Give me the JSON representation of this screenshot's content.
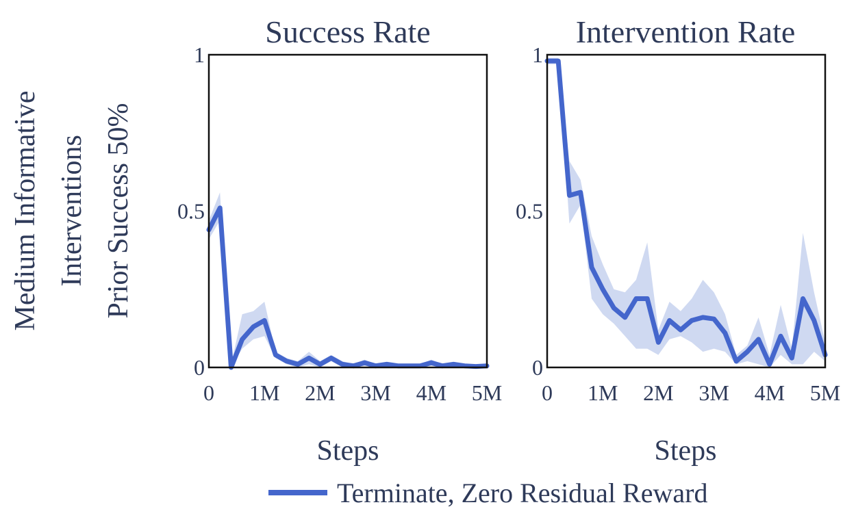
{
  "row_label": [
    "Medium Informative",
    "Interventions",
    "Prior Success 50%"
  ],
  "legend": {
    "label": "Terminate, Zero Residual Reward",
    "color": "#4466cc"
  },
  "colors": {
    "line": "#4466cc",
    "band": "#c7d2ee",
    "text": "#2e3a59",
    "frame": "#111111"
  },
  "chart_data": [
    {
      "type": "line",
      "title": "Success Rate",
      "xlabel": "Steps",
      "ylabel": "",
      "xlim": [
        0,
        5000000
      ],
      "ylim": [
        0,
        1
      ],
      "xticks": [
        0,
        1000000,
        2000000,
        3000000,
        4000000,
        5000000
      ],
      "xtick_labels": [
        "0",
        "1M",
        "2M",
        "3M",
        "4M",
        "5M"
      ],
      "yticks": [
        0,
        0.5,
        1
      ],
      "ytick_labels": [
        "0",
        "0.5",
        "1"
      ],
      "series": [
        {
          "name": "Terminate, Zero Residual Reward",
          "x": [
            0,
            200000,
            400000,
            600000,
            800000,
            1000000,
            1200000,
            1400000,
            1600000,
            1800000,
            2000000,
            2200000,
            2400000,
            2600000,
            2800000,
            3000000,
            3200000,
            3400000,
            3600000,
            3800000,
            4000000,
            4200000,
            4400000,
            4600000,
            4800000,
            5000000
          ],
          "y": [
            0.44,
            0.51,
            0.0,
            0.09,
            0.13,
            0.15,
            0.04,
            0.02,
            0.01,
            0.03,
            0.01,
            0.03,
            0.01,
            0.005,
            0.015,
            0.005,
            0.01,
            0.005,
            0.005,
            0.005,
            0.015,
            0.005,
            0.01,
            0.005,
            0.003,
            0.005
          ],
          "lower": [
            0.41,
            0.47,
            0.0,
            0.06,
            0.09,
            0.1,
            0.03,
            0.01,
            0.0,
            0.01,
            0.0,
            0.02,
            0.0,
            0.0,
            0.005,
            0.0,
            0.005,
            0.0,
            0.0,
            0.0,
            0.005,
            0.0,
            0.005,
            0.0,
            0.0,
            0.0
          ],
          "upper": [
            0.47,
            0.56,
            0.01,
            0.17,
            0.18,
            0.21,
            0.05,
            0.03,
            0.02,
            0.05,
            0.02,
            0.04,
            0.02,
            0.01,
            0.025,
            0.01,
            0.015,
            0.01,
            0.01,
            0.01,
            0.025,
            0.01,
            0.015,
            0.01,
            0.006,
            0.01
          ]
        }
      ]
    },
    {
      "type": "line",
      "title": "Intervention Rate",
      "xlabel": "Steps",
      "ylabel": "",
      "xlim": [
        0,
        5000000
      ],
      "ylim": [
        0,
        1
      ],
      "xticks": [
        0,
        1000000,
        2000000,
        3000000,
        4000000,
        5000000
      ],
      "xtick_labels": [
        "0",
        "1M",
        "2M",
        "3M",
        "4M",
        "5M"
      ],
      "yticks": [
        0,
        0.5,
        1
      ],
      "ytick_labels": [
        "0",
        "0.5",
        "1"
      ],
      "series": [
        {
          "name": "Terminate, Zero Residual Reward",
          "x": [
            0,
            200000,
            400000,
            600000,
            800000,
            1000000,
            1200000,
            1400000,
            1600000,
            1800000,
            2000000,
            2200000,
            2400000,
            2600000,
            2800000,
            3000000,
            3200000,
            3400000,
            3600000,
            3800000,
            4000000,
            4200000,
            4400000,
            4600000,
            4800000,
            5000000
          ],
          "y": [
            0.98,
            0.98,
            0.55,
            0.56,
            0.32,
            0.25,
            0.19,
            0.16,
            0.22,
            0.22,
            0.08,
            0.15,
            0.12,
            0.15,
            0.16,
            0.155,
            0.11,
            0.02,
            0.05,
            0.09,
            0.01,
            0.1,
            0.03,
            0.22,
            0.15,
            0.04
          ],
          "lower": [
            0.97,
            0.97,
            0.46,
            0.52,
            0.22,
            0.17,
            0.14,
            0.1,
            0.06,
            0.06,
            0.04,
            0.09,
            0.1,
            0.08,
            0.05,
            0.06,
            0.05,
            0.01,
            0.02,
            0.01,
            0.0,
            0.04,
            0.01,
            0.01,
            0.05,
            0.02
          ],
          "upper": [
            0.99,
            0.99,
            0.66,
            0.6,
            0.42,
            0.33,
            0.25,
            0.24,
            0.28,
            0.4,
            0.12,
            0.21,
            0.18,
            0.22,
            0.28,
            0.24,
            0.17,
            0.04,
            0.07,
            0.16,
            0.04,
            0.2,
            0.06,
            0.43,
            0.24,
            0.08
          ]
        }
      ]
    }
  ]
}
